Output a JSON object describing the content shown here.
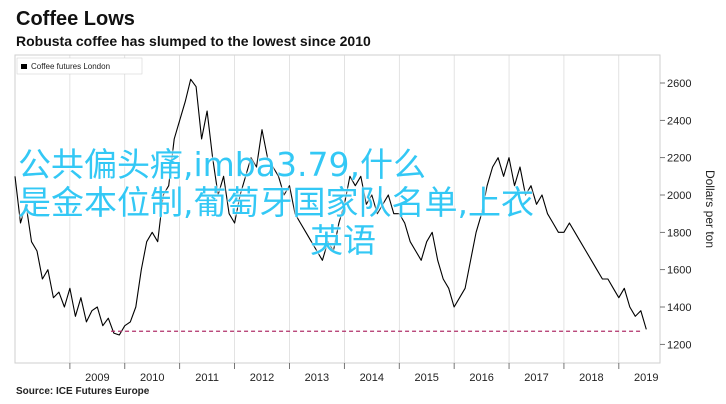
{
  "header": {
    "title": "Coffee Lows",
    "subtitle": "Robusta coffee has slumped to the lowest since 2010"
  },
  "footer": {
    "source": "Source: ICE Futures Europe"
  },
  "overlay_text": {
    "line1": "公共偏头痛,imba3.79,什么",
    "line2": "是金本位制,葡萄牙国家队名单,上衣",
    "line3": "英语"
  },
  "colors": {
    "series": "#000000",
    "reference_line": "#b0306a",
    "grid": "#d0d0d0",
    "overlay": "#33c8f5"
  },
  "chart_data": {
    "type": "line",
    "title": "",
    "xlabel": "",
    "ylabel": "Dollars per ton",
    "ylim": [
      1100,
      2750
    ],
    "xlim": [
      2008.0,
      2019.75
    ],
    "y_ticks": [
      1200,
      1400,
      1600,
      1800,
      2000,
      2200,
      2400,
      2600
    ],
    "y_tick_labels": [
      "1200",
      "1400",
      "1600",
      "1800",
      "2000",
      "2200",
      "2400",
      "2600"
    ],
    "x_tick_labels": [
      "2009",
      "2010",
      "2011",
      "2012",
      "2013",
      "2014",
      "2015",
      "2016",
      "2017",
      "2018",
      "2019"
    ],
    "x_tick_centers": [
      2009.5,
      2010.5,
      2011.5,
      2012.5,
      2013.5,
      2014.5,
      2015.5,
      2016.5,
      2017.5,
      2018.5,
      2019.5
    ],
    "grid": true,
    "legend_position": "top-left",
    "series": [
      {
        "name": "Coffee futures London",
        "x": [
          2008.0,
          2008.1,
          2008.2,
          2008.3,
          2008.4,
          2008.5,
          2008.6,
          2008.7,
          2008.8,
          2008.9,
          2009.0,
          2009.1,
          2009.2,
          2009.3,
          2009.4,
          2009.5,
          2009.6,
          2009.7,
          2009.8,
          2009.9,
          2010.0,
          2010.1,
          2010.2,
          2010.3,
          2010.4,
          2010.5,
          2010.6,
          2010.7,
          2010.8,
          2010.9,
          2011.0,
          2011.1,
          2011.2,
          2011.3,
          2011.4,
          2011.5,
          2011.6,
          2011.7,
          2011.8,
          2011.9,
          2012.0,
          2012.1,
          2012.2,
          2012.3,
          2012.4,
          2012.5,
          2012.6,
          2012.7,
          2012.8,
          2012.9,
          2013.0,
          2013.1,
          2013.2,
          2013.3,
          2013.4,
          2013.5,
          2013.6,
          2013.7,
          2013.8,
          2013.9,
          2014.0,
          2014.1,
          2014.2,
          2014.3,
          2014.4,
          2014.5,
          2014.6,
          2014.7,
          2014.8,
          2014.9,
          2015.0,
          2015.1,
          2015.2,
          2015.3,
          2015.4,
          2015.5,
          2015.6,
          2015.7,
          2015.8,
          2015.9,
          2016.0,
          2016.1,
          2016.2,
          2016.3,
          2016.4,
          2016.5,
          2016.6,
          2016.7,
          2016.8,
          2016.9,
          2017.0,
          2017.1,
          2017.2,
          2017.3,
          2017.4,
          2017.5,
          2017.6,
          2017.7,
          2017.8,
          2017.9,
          2018.0,
          2018.1,
          2018.2,
          2018.3,
          2018.4,
          2018.5,
          2018.6,
          2018.7,
          2018.8,
          2018.9,
          2019.0,
          2019.1,
          2019.2,
          2019.3,
          2019.4,
          2019.5
        ],
        "y": [
          2100,
          1850,
          1950,
          1750,
          1700,
          1550,
          1600,
          1450,
          1480,
          1400,
          1500,
          1350,
          1450,
          1320,
          1380,
          1400,
          1300,
          1340,
          1260,
          1250,
          1300,
          1320,
          1400,
          1600,
          1750,
          1800,
          1750,
          2000,
          2050,
          2300,
          2400,
          2500,
          2620,
          2580,
          2300,
          2450,
          2200,
          2000,
          2100,
          1900,
          1850,
          2000,
          2100,
          2200,
          2150,
          2350,
          2200,
          2150,
          2100,
          2000,
          2050,
          1900,
          1850,
          1800,
          1750,
          1700,
          1650,
          1750,
          1700,
          1850,
          1950,
          2100,
          2050,
          2100,
          1950,
          2000,
          1900,
          1950,
          2000,
          1900,
          1900,
          1850,
          1750,
          1700,
          1650,
          1750,
          1800,
          1650,
          1550,
          1500,
          1400,
          1450,
          1500,
          1650,
          1800,
          1900,
          2050,
          2150,
          2200,
          2100,
          2200,
          2050,
          2150,
          2000,
          2050,
          1950,
          2000,
          1900,
          1850,
          1800,
          1800,
          1850,
          1800,
          1750,
          1700,
          1650,
          1600,
          1550,
          1550,
          1500,
          1450,
          1500,
          1400,
          1350,
          1380,
          1280
        ]
      },
      {
        "name": "",
        "x": [
          2009.75,
          2019.4
        ],
        "y": [
          1270,
          1270
        ]
      }
    ]
  }
}
